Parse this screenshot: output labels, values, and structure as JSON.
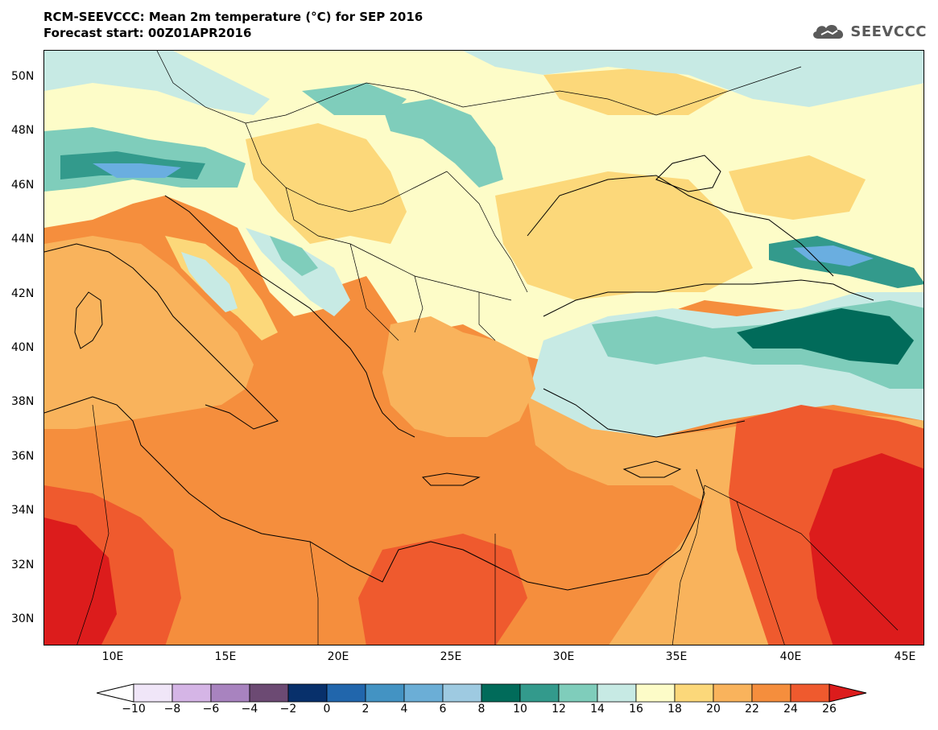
{
  "header": {
    "title_line1": "RCM-SEEVCCC: Mean 2m temperature (°C) for SEP 2016",
    "title_line2": "Forecast start: 00Z01APR2016",
    "logo_text": "SEEVCCC"
  },
  "map": {
    "lat_labels": [
      "50N",
      "48N",
      "46N",
      "44N",
      "42N",
      "40N",
      "38N",
      "36N",
      "34N",
      "32N",
      "30N"
    ],
    "lon_labels": [
      "10E",
      "15E",
      "20E",
      "25E",
      "30E",
      "35E",
      "40E",
      "45E"
    ],
    "colors": {
      "land_default": "#fdfcc8",
      "c16_18": "#fdfcc8",
      "c18_20": "#fcd87a",
      "c20_22": "#f9b35c",
      "c22_24": "#f58e3d",
      "c24_26": "#ef5a2e",
      "c26plus": "#dc1c1c",
      "c14_16": "#c7eae4",
      "c12_14": "#7fcdbb",
      "c10_12": "#339a8c",
      "c8_10": "#016b5a",
      "c6_8": "#9fc7e6",
      "c4_6": "#6aaee0",
      "c2_4": "#3b82c4"
    }
  },
  "colorbar": {
    "labels": [
      "−10",
      "−8",
      "−6",
      "−4",
      "−2",
      "0",
      "2",
      "4",
      "6",
      "8",
      "10",
      "12",
      "14",
      "16",
      "18",
      "20",
      "22",
      "24",
      "26"
    ],
    "colors": [
      "#f0e6f8",
      "#d5b5e6",
      "#a883bf",
      "#6c4a73",
      "#08306b",
      "#2166ac",
      "#4393c3",
      "#6baed6",
      "#9ecae1",
      "#016b5a",
      "#339a8c",
      "#7fcdbb",
      "#c7eae4",
      "#fdfcc8",
      "#fcd87a",
      "#f9b35c",
      "#f58e3d",
      "#ef5a2e"
    ],
    "under_color": "#ffffff",
    "over_color": "#dc1c1c"
  }
}
